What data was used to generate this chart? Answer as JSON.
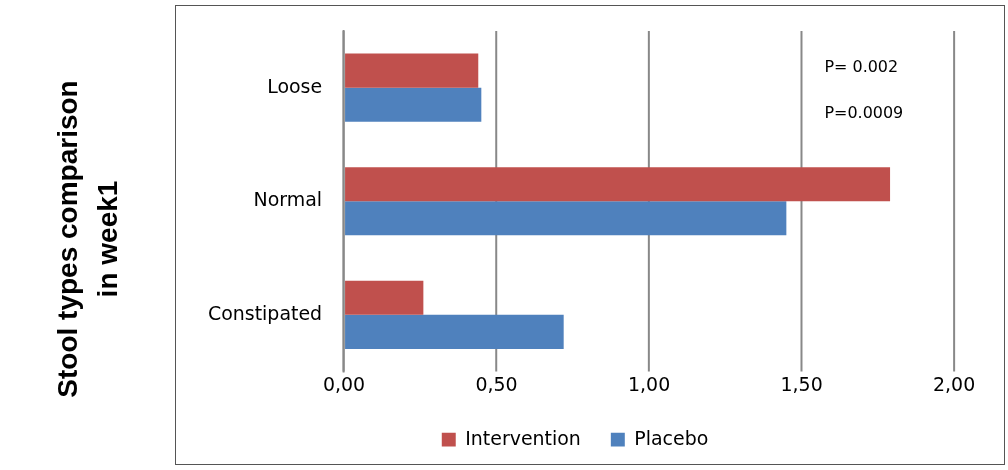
{
  "chart_data": {
    "type": "bar",
    "orientation": "horizontal",
    "ylabel": "Stool types comparison in week1",
    "categories": [
      "Loose",
      "Normal",
      "Constipated"
    ],
    "series": [
      {
        "name": "Intervention",
        "color": "#c0504d",
        "values": [
          0.44,
          1.79,
          0.26
        ]
      },
      {
        "name": "Placebo",
        "color": "#4f81bd",
        "values": [
          0.45,
          1.45,
          0.72
        ]
      }
    ],
    "xlim": [
      0,
      2
    ],
    "xticks": [
      {
        "value": 0,
        "label": "0,00"
      },
      {
        "value": 0.5,
        "label": "0,50"
      },
      {
        "value": 1,
        "label": "1,00"
      },
      {
        "value": 1.5,
        "label": "1,50"
      },
      {
        "value": 2,
        "label": "2,00"
      }
    ],
    "grid": "x",
    "legend": "bottom",
    "annotations": [
      "P= 0.002",
      "P=0.0009"
    ]
  }
}
